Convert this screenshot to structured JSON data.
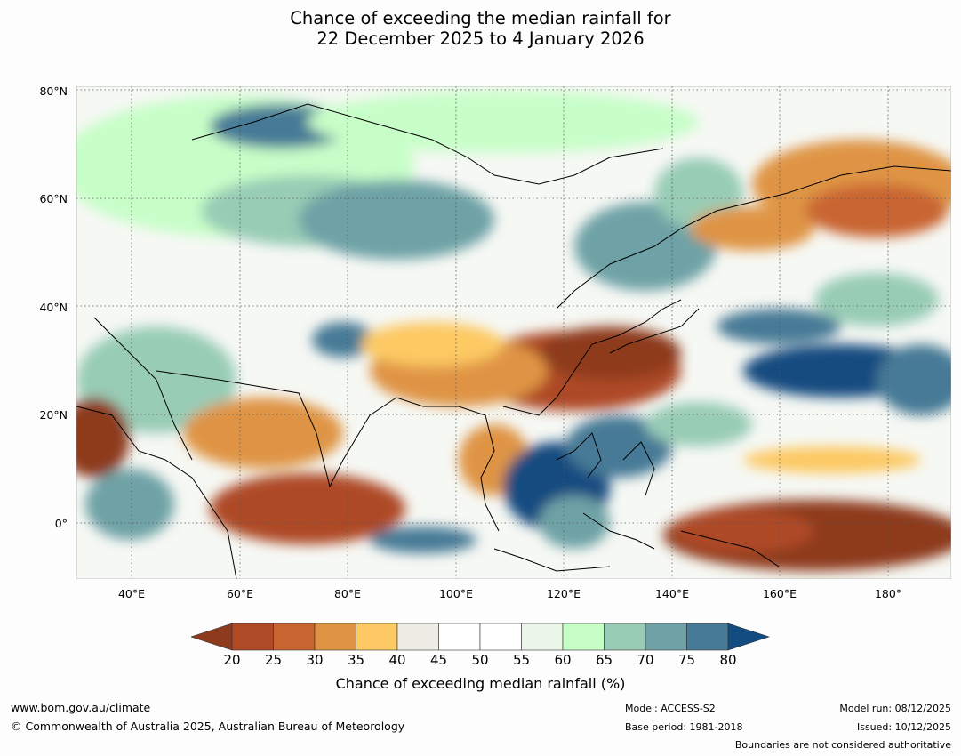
{
  "title": {
    "line1": "Chance of exceeding the median rainfall for",
    "line2": "22 December 2025 to 4 January 2026"
  },
  "axes": {
    "lat_labels": [
      "80°N",
      "60°N",
      "40°N",
      "20°N",
      "0°"
    ],
    "lon_labels": [
      "40°E",
      "60°E",
      "80°E",
      "100°E",
      "120°E",
      "140°E",
      "160°E",
      "180°"
    ]
  },
  "colorbar": {
    "ticks": [
      "20",
      "25",
      "30",
      "35",
      "40",
      "45",
      "50",
      "55",
      "60",
      "65",
      "70",
      "75",
      "80"
    ],
    "colors": [
      "#8e3a1d",
      "#ae4a25",
      "#c96532",
      "#df9444",
      "#fdc964",
      "#efece6",
      "#ffffff",
      "#ffffff",
      "#eaf6e7",
      "#c7fec8",
      "#98ccb5",
      "#6ea2a6",
      "#467a96",
      "#134c80"
    ],
    "label": "Chance of exceeding median rainfall (%)"
  },
  "footer": {
    "url": "www.bom.gov.au/climate",
    "copyright": "© Commonwealth of Australia 2025, Australian Bureau of Meteorology",
    "model": "Model: ACCESS-S2",
    "base_period": "Base period: 1981-2018",
    "model_run": "Model run: 08/12/2025",
    "issued": "Issued: 10/12/2025",
    "disclaimer": "Boundaries are not considered authoritative"
  }
}
